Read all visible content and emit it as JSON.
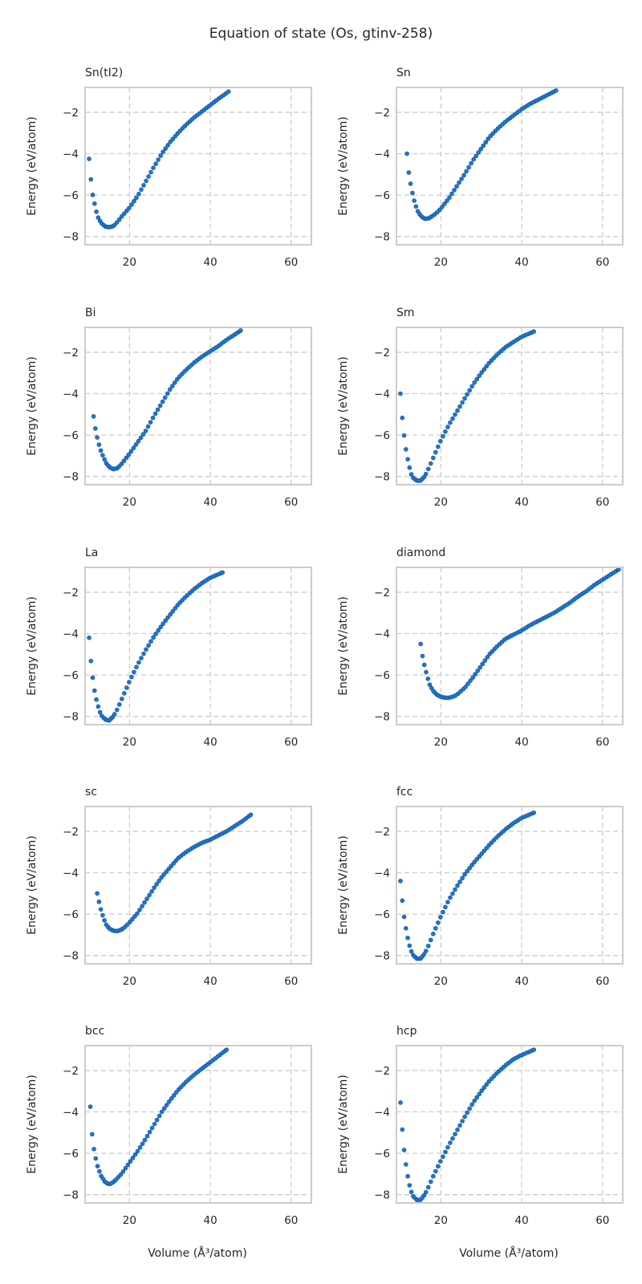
{
  "figure": {
    "title": "Equation of state (Os, gtinv-258)",
    "ylabel": "Energy (eV/atom)",
    "xlabel": "Volume (Å³/atom)"
  },
  "chart_data": [
    {
      "type": "scatter",
      "title": "Sn(tI2)",
      "xlim": [
        9,
        65
      ],
      "ylim": [
        -8.4,
        -0.8
      ],
      "xticks": [
        20,
        40,
        60
      ],
      "yticks": [
        -8,
        -6,
        -4,
        -2
      ],
      "grid": true,
      "keypoints": [
        [
          10,
          -4.25
        ],
        [
          10.5,
          -5.35
        ],
        [
          11,
          -6.15
        ],
        [
          11.6,
          -6.6
        ],
        [
          12,
          -7.0
        ],
        [
          13,
          -7.35
        ],
        [
          14,
          -7.52
        ],
        [
          15,
          -7.55
        ],
        [
          16,
          -7.5
        ],
        [
          17,
          -7.3
        ],
        [
          18,
          -7.05
        ],
        [
          20,
          -6.6
        ],
        [
          22,
          -6.05
        ],
        [
          24,
          -5.35
        ],
        [
          26,
          -4.65
        ],
        [
          28,
          -4.0
        ],
        [
          30,
          -3.45
        ],
        [
          32,
          -3.0
        ],
        [
          34,
          -2.6
        ],
        [
          36,
          -2.25
        ],
        [
          38,
          -1.95
        ],
        [
          40,
          -1.65
        ],
        [
          42,
          -1.35
        ],
        [
          44.5,
          -1.0
        ]
      ]
    },
    {
      "type": "scatter",
      "title": "Sn",
      "xlim": [
        9,
        65
      ],
      "ylim": [
        -8.4,
        -0.8
      ],
      "xticks": [
        20,
        40,
        60
      ],
      "yticks": [
        -8,
        -6,
        -4,
        -2
      ],
      "grid": true,
      "keypoints": [
        [
          11.6,
          -4.0
        ],
        [
          12,
          -4.85
        ],
        [
          12.5,
          -5.45
        ],
        [
          13,
          -5.95
        ],
        [
          13.5,
          -6.35
        ],
        [
          14.2,
          -6.75
        ],
        [
          15,
          -7.0
        ],
        [
          16,
          -7.15
        ],
        [
          17,
          -7.12
        ],
        [
          18,
          -7.0
        ],
        [
          19,
          -6.85
        ],
        [
          20,
          -6.65
        ],
        [
          22,
          -6.15
        ],
        [
          24,
          -5.55
        ],
        [
          26,
          -4.95
        ],
        [
          28,
          -4.3
        ],
        [
          30,
          -3.75
        ],
        [
          32,
          -3.2
        ],
        [
          34,
          -2.8
        ],
        [
          36,
          -2.45
        ],
        [
          38,
          -2.15
        ],
        [
          40,
          -1.85
        ],
        [
          42,
          -1.6
        ],
        [
          44,
          -1.4
        ],
        [
          46,
          -1.2
        ],
        [
          48.5,
          -0.95
        ]
      ]
    },
    {
      "type": "scatter",
      "title": "Bi",
      "xlim": [
        9,
        65
      ],
      "ylim": [
        -8.4,
        -0.8
      ],
      "xticks": [
        20,
        40,
        60
      ],
      "yticks": [
        -8,
        -6,
        -4,
        -2
      ],
      "grid": true,
      "keypoints": [
        [
          11.1,
          -5.1
        ],
        [
          11.6,
          -5.75
        ],
        [
          12.2,
          -6.3
        ],
        [
          12.8,
          -6.7
        ],
        [
          13.5,
          -7.05
        ],
        [
          14.2,
          -7.35
        ],
        [
          15,
          -7.55
        ],
        [
          16,
          -7.65
        ],
        [
          17,
          -7.6
        ],
        [
          18,
          -7.4
        ],
        [
          19,
          -7.15
        ],
        [
          20,
          -6.9
        ],
        [
          22,
          -6.35
        ],
        [
          24,
          -5.8
        ],
        [
          26,
          -5.1
        ],
        [
          28,
          -4.45
        ],
        [
          30,
          -3.8
        ],
        [
          32,
          -3.25
        ],
        [
          34,
          -2.85
        ],
        [
          36,
          -2.5
        ],
        [
          38,
          -2.2
        ],
        [
          40,
          -1.95
        ],
        [
          42,
          -1.7
        ],
        [
          44,
          -1.4
        ],
        [
          46,
          -1.15
        ],
        [
          47.5,
          -0.95
        ]
      ]
    },
    {
      "type": "scatter",
      "title": "Sm",
      "xlim": [
        9,
        65
      ],
      "ylim": [
        -8.4,
        -0.8
      ],
      "xticks": [
        20,
        40,
        60
      ],
      "yticks": [
        -8,
        -6,
        -4,
        -2
      ],
      "grid": true,
      "keypoints": [
        [
          10,
          -4.0
        ],
        [
          10.5,
          -5.3
        ],
        [
          11,
          -6.2
        ],
        [
          11.5,
          -6.9
        ],
        [
          12,
          -7.35
        ],
        [
          12.5,
          -7.8
        ],
        [
          13,
          -8.05
        ],
        [
          14,
          -8.2
        ],
        [
          15,
          -8.2
        ],
        [
          16,
          -8.0
        ],
        [
          17,
          -7.6
        ],
        [
          18,
          -7.15
        ],
        [
          20,
          -6.25
        ],
        [
          22,
          -5.5
        ],
        [
          24,
          -4.85
        ],
        [
          26,
          -4.2
        ],
        [
          28,
          -3.55
        ],
        [
          30,
          -3.0
        ],
        [
          32,
          -2.5
        ],
        [
          34,
          -2.1
        ],
        [
          36,
          -1.75
        ],
        [
          38,
          -1.5
        ],
        [
          40,
          -1.25
        ],
        [
          43,
          -1.0
        ]
      ]
    },
    {
      "type": "scatter",
      "title": "La",
      "xlim": [
        9,
        65
      ],
      "ylim": [
        -8.4,
        -0.8
      ],
      "xticks": [
        20,
        40,
        60
      ],
      "yticks": [
        -8,
        -6,
        -4,
        -2
      ],
      "grid": true,
      "keypoints": [
        [
          10,
          -4.2
        ],
        [
          10.5,
          -5.45
        ],
        [
          11,
          -6.3
        ],
        [
          11.5,
          -6.95
        ],
        [
          12,
          -7.35
        ],
        [
          12.5,
          -7.7
        ],
        [
          13,
          -7.95
        ],
        [
          14,
          -8.15
        ],
        [
          15,
          -8.2
        ],
        [
          16,
          -8.0
        ],
        [
          17,
          -7.65
        ],
        [
          18,
          -7.2
        ],
        [
          20,
          -6.3
        ],
        [
          22,
          -5.5
        ],
        [
          24,
          -4.8
        ],
        [
          26,
          -4.15
        ],
        [
          28,
          -3.6
        ],
        [
          30,
          -3.1
        ],
        [
          32,
          -2.6
        ],
        [
          34,
          -2.2
        ],
        [
          36,
          -1.85
        ],
        [
          38,
          -1.55
        ],
        [
          40,
          -1.3
        ],
        [
          43,
          -1.05
        ]
      ]
    },
    {
      "type": "scatter",
      "title": "diamond",
      "xlim": [
        9,
        65
      ],
      "ylim": [
        -8.4,
        -0.8
      ],
      "xticks": [
        20,
        40,
        60
      ],
      "yticks": [
        -8,
        -6,
        -4,
        -2
      ],
      "grid": true,
      "keypoints": [
        [
          15,
          -4.5
        ],
        [
          15.5,
          -5.15
        ],
        [
          16,
          -5.6
        ],
        [
          16.6,
          -6.05
        ],
        [
          17.2,
          -6.45
        ],
        [
          18,
          -6.75
        ],
        [
          19,
          -6.95
        ],
        [
          20,
          -7.05
        ],
        [
          21,
          -7.1
        ],
        [
          22,
          -7.1
        ],
        [
          23,
          -7.05
        ],
        [
          24,
          -6.95
        ],
        [
          26,
          -6.6
        ],
        [
          28,
          -6.1
        ],
        [
          30,
          -5.55
        ],
        [
          32,
          -5.0
        ],
        [
          34,
          -4.6
        ],
        [
          36,
          -4.25
        ],
        [
          38,
          -4.05
        ],
        [
          40,
          -3.85
        ],
        [
          42,
          -3.6
        ],
        [
          44,
          -3.4
        ],
        [
          46,
          -3.2
        ],
        [
          48,
          -3.0
        ],
        [
          50,
          -2.75
        ],
        [
          52,
          -2.5
        ],
        [
          54,
          -2.2
        ],
        [
          56,
          -1.95
        ],
        [
          58,
          -1.65
        ],
        [
          60,
          -1.4
        ],
        [
          62,
          -1.15
        ],
        [
          64,
          -0.9
        ]
      ]
    },
    {
      "type": "scatter",
      "title": "sc",
      "xlim": [
        9,
        65
      ],
      "ylim": [
        -8.4,
        -0.8
      ],
      "xticks": [
        20,
        40,
        60
      ],
      "yticks": [
        -8,
        -6,
        -4,
        -2
      ],
      "grid": true,
      "keypoints": [
        [
          12,
          -5.0
        ],
        [
          12.5,
          -5.45
        ],
        [
          13,
          -5.85
        ],
        [
          13.6,
          -6.2
        ],
        [
          14.2,
          -6.5
        ],
        [
          15,
          -6.7
        ],
        [
          16,
          -6.8
        ],
        [
          17,
          -6.82
        ],
        [
          18,
          -6.75
        ],
        [
          19,
          -6.6
        ],
        [
          20,
          -6.4
        ],
        [
          22,
          -5.95
        ],
        [
          24,
          -5.35
        ],
        [
          26,
          -4.75
        ],
        [
          28,
          -4.2
        ],
        [
          30,
          -3.75
        ],
        [
          32,
          -3.3
        ],
        [
          34,
          -3.0
        ],
        [
          36,
          -2.75
        ],
        [
          38,
          -2.55
        ],
        [
          40,
          -2.4
        ],
        [
          42,
          -2.2
        ],
        [
          44,
          -2.0
        ],
        [
          46,
          -1.75
        ],
        [
          48,
          -1.5
        ],
        [
          50,
          -1.2
        ]
      ]
    },
    {
      "type": "scatter",
      "title": "fcc",
      "xlim": [
        9,
        65
      ],
      "ylim": [
        -8.4,
        -0.8
      ],
      "xticks": [
        20,
        40,
        60
      ],
      "yticks": [
        -8,
        -6,
        -4,
        -2
      ],
      "grid": true,
      "keypoints": [
        [
          10,
          -4.4
        ],
        [
          10.5,
          -5.45
        ],
        [
          11,
          -6.3
        ],
        [
          11.5,
          -6.85
        ],
        [
          12,
          -7.35
        ],
        [
          12.5,
          -7.7
        ],
        [
          13,
          -7.95
        ],
        [
          14,
          -8.15
        ],
        [
          15,
          -8.15
        ],
        [
          16,
          -7.9
        ],
        [
          17,
          -7.5
        ],
        [
          18,
          -7.0
        ],
        [
          20,
          -6.1
        ],
        [
          22,
          -5.3
        ],
        [
          24,
          -4.65
        ],
        [
          26,
          -4.05
        ],
        [
          28,
          -3.55
        ],
        [
          30,
          -3.1
        ],
        [
          32,
          -2.65
        ],
        [
          34,
          -2.25
        ],
        [
          36,
          -1.9
        ],
        [
          38,
          -1.6
        ],
        [
          40,
          -1.35
        ],
        [
          43,
          -1.1
        ]
      ]
    },
    {
      "type": "scatter",
      "title": "bcc",
      "xlim": [
        9,
        65
      ],
      "ylim": [
        -8.4,
        -0.8
      ],
      "xticks": [
        20,
        40,
        60
      ],
      "yticks": [
        -8,
        -6,
        -4,
        -2
      ],
      "grid": true,
      "keypoints": [
        [
          10.3,
          -3.75
        ],
        [
          10.7,
          -5.0
        ],
        [
          11.2,
          -5.8
        ],
        [
          11.7,
          -6.3
        ],
        [
          12.2,
          -6.7
        ],
        [
          13,
          -7.1
        ],
        [
          14,
          -7.4
        ],
        [
          15,
          -7.5
        ],
        [
          16,
          -7.4
        ],
        [
          17,
          -7.2
        ],
        [
          18,
          -7.0
        ],
        [
          20,
          -6.45
        ],
        [
          22,
          -5.9
        ],
        [
          24,
          -5.3
        ],
        [
          26,
          -4.65
        ],
        [
          28,
          -4.0
        ],
        [
          30,
          -3.45
        ],
        [
          32,
          -2.95
        ],
        [
          34,
          -2.55
        ],
        [
          36,
          -2.2
        ],
        [
          38,
          -1.9
        ],
        [
          40,
          -1.6
        ],
        [
          42,
          -1.3
        ],
        [
          44,
          -1.0
        ]
      ]
    },
    {
      "type": "scatter",
      "title": "hcp",
      "xlim": [
        9,
        65
      ],
      "ylim": [
        -8.4,
        -0.8
      ],
      "xticks": [
        20,
        40,
        60
      ],
      "yticks": [
        -8,
        -6,
        -4,
        -2
      ],
      "grid": true,
      "keypoints": [
        [
          10,
          -3.55
        ],
        [
          10.5,
          -5.0
        ],
        [
          11,
          -6.05
        ],
        [
          11.5,
          -6.75
        ],
        [
          12,
          -7.35
        ],
        [
          12.5,
          -7.75
        ],
        [
          13,
          -8.05
        ],
        [
          14,
          -8.25
        ],
        [
          15,
          -8.25
        ],
        [
          16,
          -8.0
        ],
        [
          17,
          -7.6
        ],
        [
          18,
          -7.15
        ],
        [
          20,
          -6.35
        ],
        [
          22,
          -5.6
        ],
        [
          24,
          -4.9
        ],
        [
          26,
          -4.2
        ],
        [
          28,
          -3.55
        ],
        [
          30,
          -3.0
        ],
        [
          32,
          -2.5
        ],
        [
          34,
          -2.1
        ],
        [
          36,
          -1.75
        ],
        [
          38,
          -1.45
        ],
        [
          40,
          -1.25
        ],
        [
          43,
          -1.0
        ]
      ]
    }
  ]
}
